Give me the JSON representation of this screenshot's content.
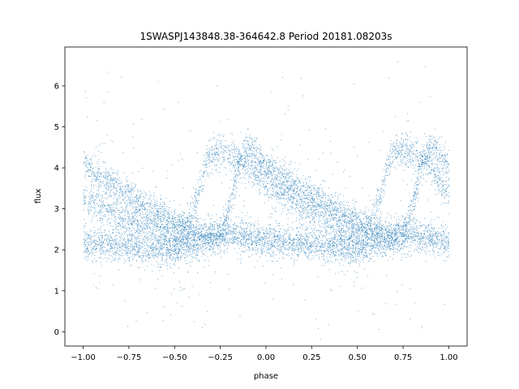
{
  "chart_data": {
    "type": "scatter",
    "title": "1SWASPJ143848.38-364642.8 Period 20181.08203s",
    "xlabel": "phase",
    "ylabel": "flux",
    "xlim": [
      -1.1,
      1.1
    ],
    "ylim": [
      -0.35,
      6.95
    ],
    "x_ticks": [
      -1.0,
      -0.75,
      -0.5,
      -0.25,
      0.0,
      0.25,
      0.5,
      0.75,
      1.0
    ],
    "x_tick_labels": [
      "−1.00",
      "−0.75",
      "−0.50",
      "−0.25",
      "0.00",
      "0.25",
      "0.50",
      "0.75",
      "1.00"
    ],
    "y_ticks": [
      0,
      1,
      2,
      3,
      4,
      5,
      6
    ],
    "y_tick_labels": [
      "0",
      "1",
      "2",
      "3",
      "4",
      "5",
      "6"
    ],
    "grid": false,
    "point_color": "#1f77b4",
    "series": [
      {
        "values": [
          {
            "phase": -1.0,
            "flux": 4.1
          },
          {
            "phase": -0.9,
            "flux": 3.75
          },
          {
            "phase": -0.75,
            "flux": 3.35
          },
          {
            "phase": -0.6,
            "flux": 2.95
          },
          {
            "phase": -0.5,
            "flux": 2.7
          },
          {
            "phase": -0.4,
            "flux": 2.45
          },
          {
            "phase": -0.3,
            "flux": 2.3
          },
          {
            "phase": -0.25,
            "flux": 2.35
          },
          {
            "phase": -0.2,
            "flux": 3.1
          },
          {
            "phase": -0.15,
            "flux": 4.1
          },
          {
            "phase": -0.1,
            "flux": 4.6
          },
          {
            "phase": 0.0,
            "flux": 4.05
          },
          {
            "phase": 0.1,
            "flux": 3.75
          },
          {
            "phase": 0.25,
            "flux": 3.35
          },
          {
            "phase": 0.4,
            "flux": 2.95
          },
          {
            "phase": 0.5,
            "flux": 2.7
          },
          {
            "phase": 0.6,
            "flux": 2.45
          },
          {
            "phase": 0.7,
            "flux": 2.3
          },
          {
            "phase": 0.75,
            "flux": 2.35
          },
          {
            "phase": 0.8,
            "flux": 3.1
          },
          {
            "phase": 0.85,
            "flux": 4.1
          },
          {
            "phase": 0.9,
            "flux": 4.6
          },
          {
            "phase": 1.0,
            "flux": 4.05
          }
        ]
      },
      {
        "values": [
          {
            "phase": -1.0,
            "flux": 3.3
          },
          {
            "phase": -0.9,
            "flux": 3.0
          },
          {
            "phase": -0.75,
            "flux": 2.75
          },
          {
            "phase": -0.6,
            "flux": 2.5
          },
          {
            "phase": -0.5,
            "flux": 2.3
          },
          {
            "phase": -0.45,
            "flux": 2.4
          },
          {
            "phase": -0.38,
            "flux": 3.2
          },
          {
            "phase": -0.32,
            "flux": 4.3
          },
          {
            "phase": -0.25,
            "flux": 4.45
          },
          {
            "phase": -0.1,
            "flux": 4.05
          },
          {
            "phase": 0.0,
            "flux": 3.65
          },
          {
            "phase": 0.2,
            "flux": 3.05
          },
          {
            "phase": 0.4,
            "flux": 2.55
          },
          {
            "phase": 0.5,
            "flux": 2.3
          },
          {
            "phase": 0.55,
            "flux": 2.4
          },
          {
            "phase": 0.62,
            "flux": 3.2
          },
          {
            "phase": 0.68,
            "flux": 4.3
          },
          {
            "phase": 0.75,
            "flux": 4.45
          },
          {
            "phase": 0.9,
            "flux": 4.05
          },
          {
            "phase": 1.0,
            "flux": 3.3
          }
        ]
      },
      {
        "values": [
          {
            "phase": -1.0,
            "flux": 2.2
          },
          {
            "phase": -0.75,
            "flux": 2.1
          },
          {
            "phase": -0.5,
            "flux": 2.0
          },
          {
            "phase": -0.25,
            "flux": 2.4
          },
          {
            "phase": 0.0,
            "flux": 2.25
          },
          {
            "phase": 0.25,
            "flux": 2.15
          },
          {
            "phase": 0.5,
            "flux": 2.0
          },
          {
            "phase": 0.75,
            "flux": 2.4
          },
          {
            "phase": 1.0,
            "flux": 2.2
          }
        ]
      }
    ]
  }
}
